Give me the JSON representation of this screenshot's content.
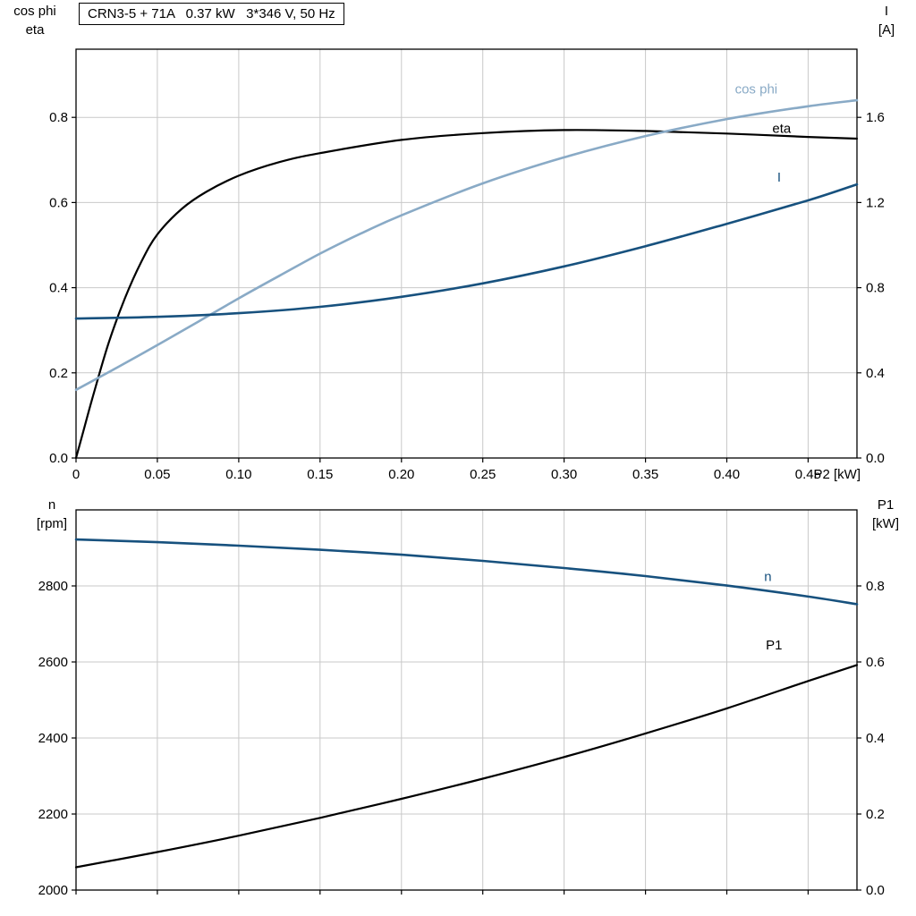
{
  "colors": {
    "black": "#000000",
    "dark_blue": "#17517e",
    "light_blue": "#89aac6",
    "grid": "#c9c9c9",
    "frame": "#000000",
    "background": "#ffffff"
  },
  "chart_data": [
    {
      "id": "top",
      "type": "line",
      "title": "CRN3-5 + 71A   0.37 kW   3*346 V, 50 Hz",
      "xlabel": "P2 [kW]",
      "left_axis_title": [
        "cos phi",
        "eta"
      ],
      "right_axis_title": [
        "I",
        "[A]"
      ],
      "xlim": [
        0,
        0.48
      ],
      "left_ylim": [
        0,
        0.96
      ],
      "right_ylim": [
        0,
        1.92
      ],
      "grid": true,
      "xticks": {
        "values": [
          0,
          0.05,
          0.1,
          0.15,
          0.2,
          0.25,
          0.3,
          0.35,
          0.4,
          0.45
        ],
        "labels": [
          "0",
          "0.05",
          "0.10",
          "0.15",
          "0.20",
          "0.25",
          "0.30",
          "0.35",
          "0.40",
          "0.45"
        ]
      },
      "left_yticks": {
        "values": [
          0,
          0.2,
          0.4,
          0.6,
          0.8
        ],
        "labels": [
          "0.0",
          "0.2",
          "0.4",
          "0.6",
          "0.8"
        ]
      },
      "right_yticks": {
        "values": [
          0,
          0.4,
          0.8,
          1.2,
          1.6
        ],
        "labels": [
          "0.0",
          "0.4",
          "0.8",
          "1.2",
          "1.6"
        ]
      },
      "series": [
        {
          "name": "eta",
          "axis": "left",
          "color": "#000000",
          "x": [
            0,
            0.005,
            0.01,
            0.02,
            0.03,
            0.04,
            0.05,
            0.065,
            0.08,
            0.1,
            0.125,
            0.15,
            0.2,
            0.25,
            0.3,
            0.35,
            0.4,
            0.45,
            0.48
          ],
          "y": [
            0,
            0.07,
            0.14,
            0.27,
            0.375,
            0.46,
            0.525,
            0.585,
            0.625,
            0.663,
            0.695,
            0.716,
            0.747,
            0.763,
            0.77,
            0.768,
            0.762,
            0.754,
            0.75
          ],
          "label": {
            "text": "eta",
            "x": 0.428,
            "y": 0.772
          }
        },
        {
          "name": "cos phi",
          "axis": "left",
          "color": "#89aac6",
          "x": [
            0,
            0.025,
            0.05,
            0.075,
            0.1,
            0.125,
            0.15,
            0.175,
            0.2,
            0.25,
            0.3,
            0.35,
            0.4,
            0.45,
            0.48
          ],
          "y": [
            0.16,
            0.212,
            0.265,
            0.32,
            0.375,
            0.428,
            0.48,
            0.527,
            0.57,
            0.645,
            0.706,
            0.756,
            0.796,
            0.826,
            0.84
          ],
          "label": {
            "text": "cos phi",
            "x": 0.405,
            "y": 0.864
          }
        },
        {
          "name": "I",
          "axis": "right",
          "color": "#17517e",
          "x": [
            0,
            0.05,
            0.1,
            0.15,
            0.2,
            0.25,
            0.3,
            0.35,
            0.4,
            0.45,
            0.48
          ],
          "y": [
            0.655,
            0.663,
            0.68,
            0.71,
            0.757,
            0.82,
            0.9,
            0.995,
            1.1,
            1.21,
            1.285
          ],
          "label": {
            "text": "I",
            "x": 0.431,
            "y": 1.315
          }
        }
      ]
    },
    {
      "id": "bottom",
      "type": "line",
      "title": "",
      "xlabel": "",
      "left_axis_title": [
        "n",
        "[rpm]"
      ],
      "right_axis_title": [
        "P1",
        "[kW]"
      ],
      "xlim": [
        0,
        0.48
      ],
      "left_ylim": [
        2000,
        3000
      ],
      "right_ylim": [
        0,
        1.0
      ],
      "grid": true,
      "xticks": {
        "values": [
          0,
          0.05,
          0.1,
          0.15,
          0.2,
          0.25,
          0.3,
          0.35,
          0.4,
          0.45
        ],
        "labels": []
      },
      "left_yticks": {
        "values": [
          2000,
          2200,
          2400,
          2600,
          2800
        ],
        "labels": [
          "2000",
          "2200",
          "2400",
          "2600",
          "2800"
        ]
      },
      "right_yticks": {
        "values": [
          0,
          0.2,
          0.4,
          0.6,
          0.8
        ],
        "labels": [
          "0.0",
          "0.2",
          "0.4",
          "0.6",
          "0.8"
        ]
      },
      "series": [
        {
          "name": "n",
          "axis": "left",
          "color": "#17517e",
          "x": [
            0,
            0.05,
            0.1,
            0.15,
            0.2,
            0.25,
            0.3,
            0.35,
            0.4,
            0.45,
            0.48
          ],
          "y": [
            2922,
            2915,
            2906,
            2895,
            2882,
            2866,
            2847,
            2826,
            2801,
            2772,
            2752
          ],
          "label": {
            "text": "n",
            "x": 0.423,
            "y": 2822
          }
        },
        {
          "name": "P1",
          "axis": "right",
          "color": "#000000",
          "x": [
            0,
            0.05,
            0.1,
            0.15,
            0.2,
            0.25,
            0.3,
            0.35,
            0.4,
            0.45,
            0.48
          ],
          "y": [
            0.06,
            0.1,
            0.143,
            0.19,
            0.24,
            0.293,
            0.35,
            0.412,
            0.478,
            0.55,
            0.592
          ],
          "label": {
            "text": "P1",
            "x": 0.424,
            "y": 0.642
          }
        }
      ]
    }
  ]
}
